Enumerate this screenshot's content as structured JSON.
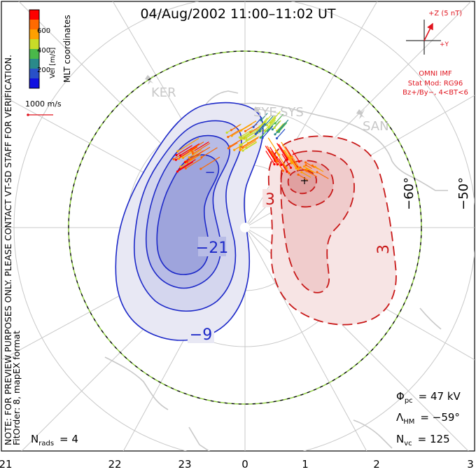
{
  "title": "04/Aug/2002 11:00–11:02 UT",
  "colorbar": {
    "unit_label": "Vel [m/s]",
    "ticks": [
      "600",
      "400",
      "200"
    ],
    "colors": [
      "#ff0000",
      "#ff6a00",
      "#ffa000",
      "#c8dc28",
      "#4ab84a",
      "#2a8a8a",
      "#2850c8",
      "#1010e0"
    ]
  },
  "coordinate_label": "MLT coordinates",
  "velocity_scale_label": "1000 m/s",
  "imf_clock": {
    "z_label": "+Z (5 nT)",
    "y_label": "+Y",
    "source_label": "OMNI IMF",
    "model_line1": "Stat Mod: RG96",
    "model_line2": "Bz+/By−, 4<BT<6"
  },
  "stations": [
    "KER",
    "SYE",
    "SYS",
    "SAN"
  ],
  "latitude_labels": [
    "−60°",
    "−50°"
  ],
  "contour_labels": {
    "negative": [
      "−21",
      "−9"
    ],
    "positive": [
      "3",
      "3"
    ],
    "neg_small": "−"
  },
  "note_line1": "NOTE: FOR PREVIEW PURPOSES ONLY. PLEASE CONTACT VT-SD STAFF FOR VERIFICATION.",
  "note_line2": "FitOrder: 8, mapEX format",
  "stats": {
    "phi_pc_sym": "Φ",
    "phi_pc_sub": "pc",
    "phi_pc_val": "= 47 kV",
    "lambda_hm_sym": "Λ",
    "lambda_hm_sub": "HM",
    "lambda_hm_val": "= −59°",
    "n_vc_sym": "N",
    "n_vc_sub": "vc",
    "n_vc_val": "= 125",
    "n_rads_sym": "N",
    "n_rads_sub": "rads",
    "n_rads_val": "= 4"
  },
  "mlt_axis": [
    "21",
    "22",
    "23",
    "0",
    "1",
    "2",
    "3"
  ],
  "colors": {
    "negative_cell": "#1c28c8",
    "positive_cell": "#c81818",
    "coastline": "#c8c8c8",
    "grid": "#c8c8c8",
    "boundary_dash": "#8ccc3c"
  }
}
